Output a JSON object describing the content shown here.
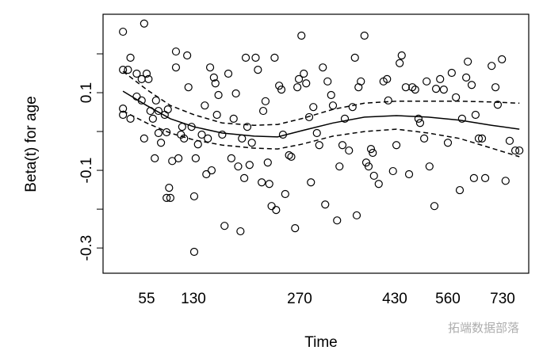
{
  "chart_data": {
    "type": "scatter",
    "x_label": "Time",
    "y_label": "Beta(t) for age",
    "x": [
      36,
      53,
      36,
      40,
      42,
      47,
      51,
      55,
      58,
      36,
      36,
      42,
      47,
      51,
      53,
      61,
      65,
      70,
      74,
      68,
      74,
      78,
      84,
      87,
      89,
      87,
      91,
      93,
      96,
      102,
      106,
      110,
      112,
      115,
      102,
      120,
      122,
      127,
      131,
      133,
      131,
      136,
      141,
      145,
      147,
      149,
      152,
      154,
      157,
      159,
      161,
      163,
      168,
      171,
      176,
      180,
      183,
      186,
      189,
      192,
      194,
      197,
      199,
      201,
      204,
      207,
      212,
      215,
      220,
      222,
      225,
      228,
      230,
      233,
      237,
      239,
      243,
      246,
      248,
      251,
      256,
      259,
      264,
      267,
      269,
      273,
      277,
      281,
      286,
      289,
      293,
      299,
      303,
      309,
      313,
      317,
      323,
      326,
      333,
      337,
      342,
      346,
      353,
      359,
      363,
      366,
      369,
      373,
      379,
      382,
      386,
      390,
      393,
      395,
      403,
      411,
      417,
      419,
      427,
      434,
      442,
      447,
      457,
      465,
      473,
      480,
      488,
      492,
      502,
      508,
      515,
      527,
      531,
      541,
      550,
      560,
      572,
      585,
      597,
      604,
      617,
      622,
      634,
      641,
      646,
      656,
      666,
      676,
      696,
      708,
      715,
      728,
      738,
      749,
      764,
      775
    ],
    "values": [
      0.257,
      0.278,
      0.159,
      0.159,
      0.19,
      0.149,
      0.135,
      0.149,
      0.135,
      0.059,
      0.043,
      0.033,
      0.09,
      0.08,
      -0.018,
      0.053,
      0.033,
      0.08,
      0.053,
      -0.069,
      -0.004,
      -0.029,
      0.043,
      -0.002,
      0.057,
      -0.171,
      -0.145,
      -0.171,
      -0.076,
      0.165,
      -0.069,
      -0.008,
      0.012,
      -0.018,
      0.206,
      0.196,
      0.114,
      0.012,
      -0.167,
      -0.069,
      -0.31,
      -0.033,
      -0.008,
      0.067,
      -0.11,
      -0.018,
      0.165,
      -0.1,
      0.139,
      0.124,
      0.043,
      0.094,
      -0.008,
      -0.243,
      0.149,
      -0.069,
      0.033,
      0.098,
      -0.09,
      -0.257,
      -0.018,
      -0.12,
      0.19,
      0.012,
      -0.086,
      -0.029,
      0.19,
      0.159,
      -0.131,
      0.053,
      0.078,
      -0.08,
      -0.135,
      -0.192,
      0.19,
      -0.202,
      0.118,
      0.108,
      -0.008,
      -0.161,
      -0.061,
      -0.065,
      -0.249,
      0.114,
      0.135,
      0.247,
      0.149,
      0.124,
      0.037,
      -0.131,
      0.063,
      -0.004,
      -0.035,
      0.165,
      -0.188,
      0.129,
      0.094,
      0.067,
      -0.229,
      -0.09,
      -0.035,
      0.033,
      -0.049,
      0.063,
      0.19,
      -0.216,
      0.114,
      0.129,
      0.247,
      -0.08,
      -0.09,
      -0.045,
      -0.055,
      -0.114,
      -0.135,
      0.129,
      0.135,
      0.08,
      -0.102,
      -0.035,
      0.176,
      0.196,
      0.114,
      -0.11,
      0.114,
      0.108,
      0.033,
      0.022,
      -0.018,
      0.129,
      -0.09,
      -0.192,
      0.11,
      0.135,
      0.108,
      -0.029,
      0.151,
      0.088,
      -0.151,
      0.033,
      0.139,
      0.18,
      0.12,
      -0.12,
      0.043,
      -0.018,
      -0.018,
      -0.12,
      0.169,
      0.114,
      0.069,
      0.186,
      -0.127,
      -0.024,
      -0.049,
      -0.049
    ],
    "fit": {
      "x": [
        36,
        55,
        93,
        131,
        168,
        210,
        241,
        273,
        326,
        379,
        434,
        512,
        597,
        696,
        775
      ],
      "values": [
        0.104,
        0.067,
        0.033,
        0.012,
        -0.004,
        -0.012,
        -0.014,
        0.002,
        0.022,
        0.037,
        0.041,
        0.037,
        0.029,
        0.016,
        0.006
      ],
      "upper": [
        0.155,
        0.108,
        0.067,
        0.043,
        0.022,
        0.016,
        0.018,
        0.033,
        0.057,
        0.073,
        0.078,
        0.078,
        0.078,
        0.076,
        0.073
      ],
      "lower": [
        0.053,
        0.022,
        -0.004,
        -0.022,
        -0.035,
        -0.043,
        -0.045,
        -0.033,
        -0.012,
        0,
        0.006,
        -0.004,
        -0.018,
        -0.043,
        -0.065
      ]
    },
    "xlim": [
      20,
      800
    ],
    "xticks": [
      55,
      130,
      270,
      430,
      560,
      730
    ],
    "ylim": [
      -0.365,
      0.302
    ],
    "yticks": [
      0.1,
      -0.1,
      -0.3
    ],
    "y_minor_ticks": [
      0.2,
      0,
      -0.2
    ],
    "color": "#000000",
    "watermark": "拓端数据部落"
  }
}
